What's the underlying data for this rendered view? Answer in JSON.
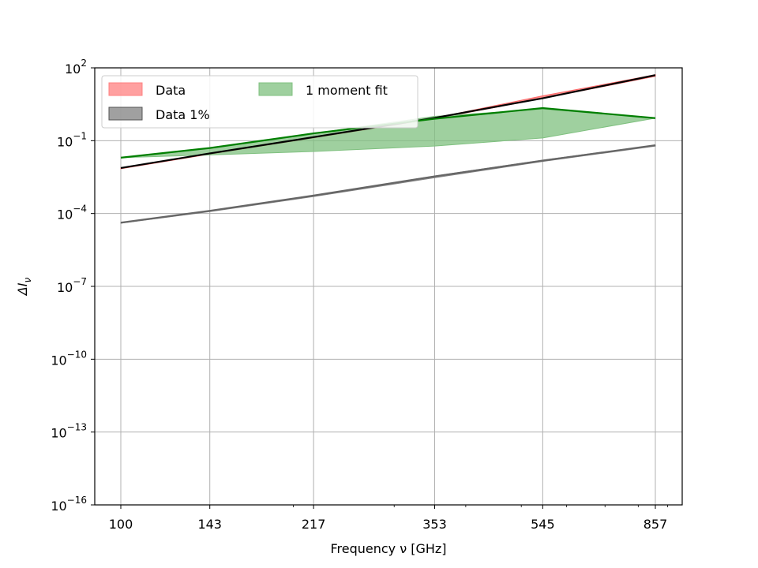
{
  "chart_data": {
    "type": "line",
    "xscale": "log",
    "yscale": "log",
    "x": [
      100,
      143,
      217,
      353,
      545,
      857
    ],
    "x_tick_labels": [
      "100",
      "143",
      "217",
      "353",
      "545",
      "857"
    ],
    "xlabel": "Frequency ν [GHz]",
    "ylabel": "ΔI",
    "ylabel_subscript": "ν",
    "ylim": [
      1e-16,
      100
    ],
    "y_ticks": [
      {
        "base": "10",
        "exp": "2",
        "value": 100
      },
      {
        "base": "10",
        "exp": "−1",
        "value": 0.1
      },
      {
        "base": "10",
        "exp": "−4",
        "value": 0.0001
      },
      {
        "base": "10",
        "exp": "−7",
        "value": 1e-07
      },
      {
        "base": "10",
        "exp": "−10",
        "value": 1e-10
      },
      {
        "base": "10",
        "exp": "−13",
        "value": 1e-13
      },
      {
        "base": "10",
        "exp": "−16",
        "value": 1e-16
      }
    ],
    "grid": true,
    "legend_position": "top-left",
    "legend": [
      {
        "label": "Data",
        "color": "#ff8080",
        "kind": "band"
      },
      {
        "label": "1 moment fit",
        "color": "#7fc07f",
        "kind": "band"
      },
      {
        "label": "Data 1%",
        "color": "#808080",
        "kind": "band"
      }
    ],
    "series": [
      {
        "name": "Data",
        "color": "#ff6666",
        "kind": "band",
        "lower": [
          0.007,
          0.028,
          0.13,
          0.8,
          5.5,
          45
        ],
        "upper": [
          0.0074,
          0.03,
          0.14,
          0.86,
          7.0,
          52
        ]
      },
      {
        "name": "Data 1%",
        "color": "#808080",
        "kind": "band",
        "lower": [
          4e-05,
          0.00012,
          0.0005,
          0.003,
          0.014,
          0.06
        ],
        "upper": [
          4.2e-05,
          0.00013,
          0.00055,
          0.0035,
          0.016,
          0.065
        ]
      },
      {
        "name": "1 moment fit",
        "color": "#7fc07f",
        "kind": "band",
        "lower": [
          0.02,
          0.026,
          0.036,
          0.06,
          0.13,
          0.85
        ],
        "upper": [
          0.02,
          0.05,
          0.2,
          1.0,
          2.0,
          0.85
        ]
      },
      {
        "name": "",
        "color": "#000000",
        "kind": "line",
        "values": [
          0.0075,
          0.03,
          0.14,
          0.87,
          5.6,
          50
        ]
      },
      {
        "name": "",
        "color": "#007f00",
        "kind": "line",
        "values": [
          0.02,
          0.05,
          0.2,
          0.8,
          2.2,
          0.85
        ]
      },
      {
        "name": "",
        "color": "#666666",
        "kind": "line",
        "values": [
          4.2e-05,
          0.00013,
          0.00055,
          0.0034,
          0.015,
          0.065
        ]
      }
    ]
  }
}
